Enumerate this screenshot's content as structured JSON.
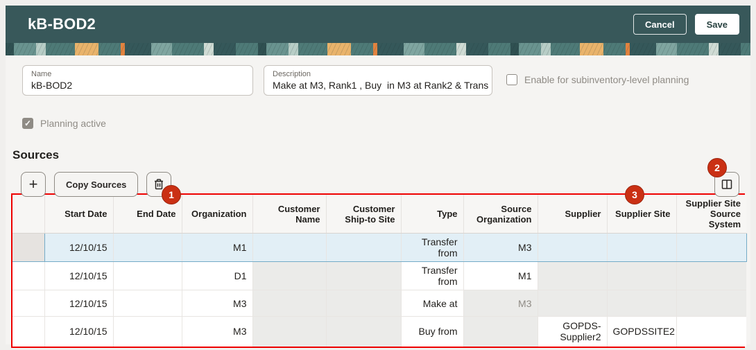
{
  "page": {
    "title": "kB-BOD2",
    "cancel_label": "Cancel",
    "save_label": "Save"
  },
  "form": {
    "name": {
      "label": "Name",
      "value": "kB-BOD2"
    },
    "description": {
      "label": "Description",
      "value": "Make at M3, Rank1 , Buy  in M3 at Rank2 & Trans"
    },
    "subinventory": {
      "label": "Enable for subinventory-level planning",
      "checked": false
    },
    "planning_active": {
      "label": "Planning active",
      "checked": true
    }
  },
  "sources": {
    "heading": "Sources",
    "toolbar": {
      "add_button": "+",
      "copy_button": "Copy Sources"
    },
    "annotations": {
      "one": "1",
      "two": "2",
      "three": "3"
    },
    "table": {
      "columns": [
        "",
        "Start Date",
        "End Date",
        "Organization",
        "Customer Name",
        "Customer Ship-to Site",
        "Type",
        "Source Organization",
        "Supplier",
        "Supplier Site",
        "Supplier Site Source System"
      ],
      "rows": [
        {
          "selected": true,
          "current": true,
          "cells": [
            {
              "v": "12/10/15"
            },
            {
              "v": ""
            },
            {
              "v": "M1"
            },
            {
              "v": "",
              "ro": true
            },
            {
              "v": "",
              "ro": true
            },
            {
              "v": "Transfer from"
            },
            {
              "v": "M3"
            },
            {
              "v": "",
              "ro": true
            },
            {
              "v": "",
              "ro": true
            },
            {
              "v": "",
              "ro": true
            }
          ]
        },
        {
          "cells": [
            {
              "v": "12/10/15"
            },
            {
              "v": ""
            },
            {
              "v": "D1"
            },
            {
              "v": "",
              "ro": true
            },
            {
              "v": "",
              "ro": true
            },
            {
              "v": "Transfer from"
            },
            {
              "v": "M1"
            },
            {
              "v": "",
              "ro": true
            },
            {
              "v": "",
              "ro": true
            },
            {
              "v": "",
              "ro": true
            }
          ]
        },
        {
          "cells": [
            {
              "v": "12/10/15"
            },
            {
              "v": ""
            },
            {
              "v": "M3"
            },
            {
              "v": "",
              "ro": true
            },
            {
              "v": "",
              "ro": true
            },
            {
              "v": "Make at"
            },
            {
              "v": "M3",
              "ro": true,
              "muted": true
            },
            {
              "v": "",
              "ro": true
            },
            {
              "v": "",
              "ro": true
            },
            {
              "v": "",
              "ro": true
            }
          ]
        },
        {
          "cells": [
            {
              "v": "12/10/15"
            },
            {
              "v": ""
            },
            {
              "v": "M3"
            },
            {
              "v": "",
              "ro": true
            },
            {
              "v": "",
              "ro": true
            },
            {
              "v": "Buy from"
            },
            {
              "v": "",
              "ro": true
            },
            {
              "v": "GOPDS-Supplier2"
            },
            {
              "v": "GOPDSSITE2"
            },
            {
              "v": ""
            }
          ]
        }
      ]
    }
  },
  "colors": {
    "header_teal": "#38585a",
    "badge_red": "#ca3014",
    "annotation_red": "#ee0000",
    "selected_row_blue": "#e2eff6",
    "readonly_cell_gray": "#ebebe9"
  }
}
